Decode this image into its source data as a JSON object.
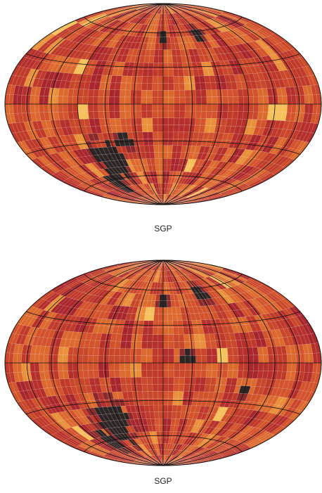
{
  "maps": [
    {
      "label": "SGP"
    },
    {
      "label": "SGP"
    }
  ]
}
